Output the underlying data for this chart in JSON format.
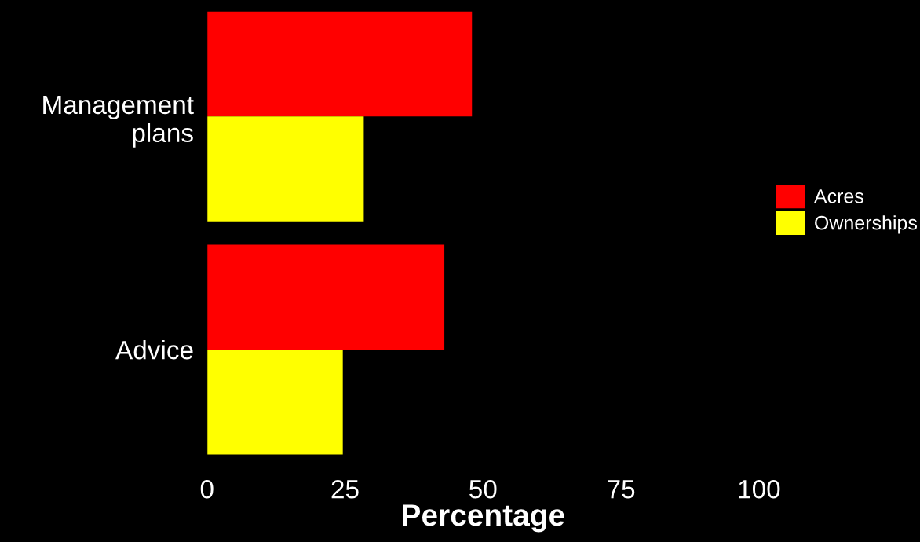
{
  "chart_data": {
    "type": "bar",
    "orientation": "horizontal",
    "xlabel": "Percentage",
    "categories": [
      "Management\nplans",
      "Advice"
    ],
    "series": [
      {
        "name": "Acres",
        "color": "#ff0000",
        "values": [
          48,
          43
        ]
      },
      {
        "name": "Ownerships",
        "color": "#ffff00",
        "values": [
          28.4,
          24.6
        ]
      }
    ],
    "xlim": [
      0,
      100
    ],
    "xticks": [
      0,
      25,
      50,
      75,
      100
    ],
    "grid": false,
    "legend": "right"
  }
}
